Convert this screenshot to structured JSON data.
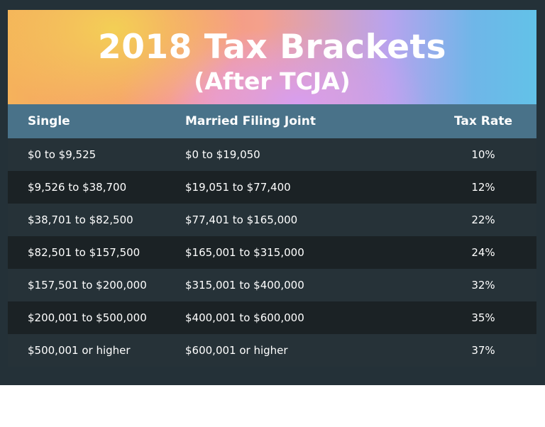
{
  "header": {
    "title": "2018 Tax Brackets",
    "subtitle": "(After TCJA)"
  },
  "table": {
    "columns": [
      "Single",
      "Married Filing Joint",
      "Tax Rate"
    ],
    "rows": [
      [
        "$0 to $9,525",
        "$0 to $19,050",
        "10%"
      ],
      [
        "$9,526 to $38,700",
        "$19,051 to $77,400",
        "12%"
      ],
      [
        "$38,701 to $82,500",
        "$77,401 to $165,000",
        "22%"
      ],
      [
        "$82,501 to $157,500",
        "$165,001 to $315,000",
        "24%"
      ],
      [
        "$157,501 to $200,000",
        "$315,001 to $400,000",
        "32%"
      ],
      [
        "$200,001 to $500,000",
        "$400,001 to $600,000",
        "35%"
      ],
      [
        "$500,001 or higher",
        "$600,001 or higher",
        "37%"
      ]
    ]
  },
  "colors": {
    "background": "#243138",
    "header_row": "#497289",
    "row_dark": "#1b2225",
    "text": "#ffffff"
  }
}
